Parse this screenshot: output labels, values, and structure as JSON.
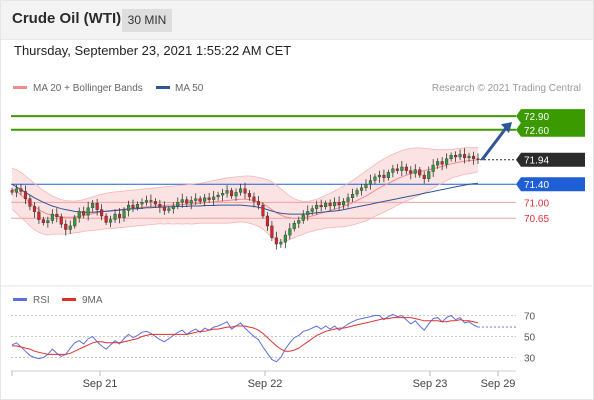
{
  "header": {
    "instrument": "Crude Oil (WTI)",
    "timeframe": "30 MIN"
  },
  "datetime": "Thursday, September 23, 2021 1:55:22 AM CET",
  "chart_data": [
    {
      "type": "candlestick",
      "legend": [
        {
          "name": "MA 20 + Bollinger Bands",
          "color": "#f08c8c"
        },
        {
          "name": "MA 50",
          "color": "#2f5597"
        }
      ],
      "copyright": "Research © 2021 Trading Central",
      "x_ticks": [
        "Sep 21",
        "Sep 22",
        "Sep 23",
        "Sep 29"
      ],
      "ylim": [
        69.2,
        73.3
      ],
      "levels": [
        {
          "value": 72.9,
          "label": "72.90",
          "color": "#3a9a00",
          "kind": "resistance"
        },
        {
          "value": 72.6,
          "label": "72.60",
          "color": "#3a9a00",
          "kind": "resistance"
        },
        {
          "value": 71.94,
          "label": "71.94",
          "color": "#2b2b2b",
          "kind": "last"
        },
        {
          "value": 71.4,
          "label": "71.40",
          "color": "#1f5fd6",
          "kind": "pivot"
        },
        {
          "value": 71.0,
          "label": "71.00",
          "color": "#e0303a",
          "kind": "support"
        },
        {
          "value": 70.65,
          "label": "70.65",
          "color": "#e0303a",
          "kind": "support"
        }
      ],
      "closes": [
        71.22,
        71.3,
        71.24,
        71.08,
        70.91,
        70.79,
        70.62,
        70.55,
        70.6,
        70.74,
        70.68,
        70.52,
        70.4,
        70.48,
        70.66,
        70.8,
        70.72,
        70.88,
        70.98,
        70.84,
        70.7,
        70.56,
        70.62,
        70.74,
        70.66,
        70.82,
        70.94,
        70.88,
        70.96,
        71.0,
        71.04,
        71.02,
        70.96,
        70.9,
        70.82,
        70.86,
        70.92,
        71.0,
        71.06,
        70.98,
        71.04,
        71.08,
        71.02,
        71.1,
        71.06,
        71.12,
        71.16,
        71.2,
        71.26,
        71.14,
        71.22,
        71.3,
        71.2,
        71.12,
        71.02,
        70.94,
        70.7,
        70.48,
        70.22,
        70.08,
        70.12,
        70.28,
        70.42,
        70.54,
        70.6,
        70.72,
        70.8,
        70.86,
        70.94,
        70.9,
        70.98,
        70.92,
        71.0,
        70.94,
        71.02,
        71.1,
        71.18,
        71.26,
        71.32,
        71.4,
        71.48,
        71.56,
        71.6,
        71.54,
        71.66,
        71.74,
        71.7,
        71.78,
        71.7,
        71.64,
        71.72,
        71.6,
        71.52,
        71.68,
        71.82,
        71.9,
        71.84,
        71.96,
        72.04,
        72.0,
        72.06,
        71.98,
        72.02,
        71.96,
        71.94
      ],
      "ma20": [
        71.3,
        71.24,
        71.16,
        71.08,
        70.99,
        70.91,
        70.84,
        70.78,
        70.74,
        70.72,
        70.7,
        70.68,
        70.67,
        70.67,
        70.68,
        70.69,
        70.71,
        70.73,
        70.75,
        70.77,
        70.79,
        70.81,
        70.82,
        70.83,
        70.84,
        70.85,
        70.86,
        70.87,
        70.88,
        70.89,
        70.9,
        70.91,
        70.92,
        70.93,
        70.93,
        70.94,
        70.94,
        70.95,
        70.95,
        70.96,
        70.96,
        70.97,
        70.98,
        70.99,
        71.0,
        71.01,
        71.02,
        71.03,
        71.04,
        71.05,
        71.06,
        71.07,
        71.07,
        71.06,
        71.04,
        71.01,
        70.97,
        70.91,
        70.84,
        70.77,
        70.72,
        70.68,
        70.66,
        70.65,
        70.65,
        70.66,
        70.68,
        70.7,
        70.73,
        70.76,
        70.79,
        70.82,
        70.85,
        70.88,
        70.91,
        70.95,
        70.99,
        71.04,
        71.09,
        71.14,
        71.2,
        71.26,
        71.32,
        71.37,
        71.42,
        71.47,
        71.52,
        71.56,
        71.6,
        71.63,
        71.66,
        71.68,
        71.7,
        71.72,
        71.74,
        71.77,
        71.79,
        71.82,
        71.85,
        71.87,
        71.89,
        71.91,
        71.92,
        71.93,
        71.94
      ],
      "bb_upper": [
        71.75,
        71.72,
        71.66,
        71.58,
        71.5,
        71.42,
        71.34,
        71.26,
        71.2,
        71.14,
        71.1,
        71.06,
        71.04,
        71.03,
        71.03,
        71.04,
        71.06,
        71.09,
        71.12,
        71.15,
        71.18,
        71.2,
        71.22,
        71.23,
        71.24,
        71.25,
        71.26,
        71.27,
        71.28,
        71.29,
        71.3,
        71.31,
        71.32,
        71.33,
        71.34,
        71.35,
        71.36,
        71.37,
        71.38,
        71.39,
        71.4,
        71.41,
        71.42,
        71.44,
        71.46,
        71.48,
        71.5,
        71.52,
        71.54,
        71.55,
        71.56,
        71.57,
        71.58,
        71.58,
        71.57,
        71.55,
        71.53,
        71.5,
        71.45,
        71.38,
        71.3,
        71.22,
        71.14,
        71.08,
        71.04,
        71.02,
        71.02,
        71.04,
        71.07,
        71.11,
        71.15,
        71.2,
        71.25,
        71.3,
        71.36,
        71.42,
        71.48,
        71.55,
        71.62,
        71.69,
        71.76,
        71.83,
        71.9,
        71.96,
        72.01,
        72.06,
        72.1,
        72.14,
        72.17,
        72.19,
        72.2,
        72.2,
        72.19,
        72.18,
        72.17,
        72.16,
        72.16,
        72.16,
        72.17,
        72.18,
        72.19,
        72.2,
        72.21,
        72.21,
        72.21
      ],
      "bb_lower": [
        70.85,
        70.76,
        70.66,
        70.58,
        70.48,
        70.4,
        70.34,
        70.3,
        70.28,
        70.3,
        70.3,
        70.3,
        70.3,
        70.31,
        70.33,
        70.34,
        70.36,
        70.37,
        70.38,
        70.39,
        70.4,
        70.42,
        70.42,
        70.43,
        70.44,
        70.45,
        70.46,
        70.47,
        70.48,
        70.49,
        70.5,
        70.51,
        70.52,
        70.53,
        70.52,
        70.53,
        70.52,
        70.53,
        70.52,
        70.53,
        70.52,
        70.53,
        70.54,
        70.54,
        70.54,
        70.54,
        70.54,
        70.54,
        70.54,
        70.55,
        70.56,
        70.57,
        70.56,
        70.54,
        70.51,
        70.47,
        70.41,
        70.32,
        70.23,
        70.16,
        70.14,
        70.14,
        70.18,
        70.22,
        70.26,
        70.3,
        70.34,
        70.36,
        70.39,
        70.41,
        70.43,
        70.44,
        70.45,
        70.46,
        70.46,
        70.48,
        70.5,
        70.53,
        70.56,
        70.59,
        70.64,
        70.69,
        70.74,
        70.78,
        70.83,
        70.88,
        70.94,
        70.98,
        71.03,
        71.07,
        71.12,
        71.16,
        71.21,
        71.26,
        71.31,
        71.38,
        71.42,
        71.48,
        71.53,
        71.56,
        71.59,
        71.62,
        71.63,
        71.65,
        71.67
      ],
      "ma50": [
        71.4,
        71.34,
        71.28,
        71.22,
        71.16,
        71.1,
        71.05,
        71.0,
        70.96,
        70.92,
        70.89,
        70.86,
        70.84,
        70.82,
        70.8,
        70.79,
        70.78,
        70.78,
        70.78,
        70.79,
        70.8,
        70.8,
        70.81,
        70.82,
        70.83,
        70.84,
        70.85,
        70.86,
        70.86,
        70.87,
        70.88,
        70.88,
        70.89,
        70.89,
        70.9,
        70.9,
        70.9,
        70.91,
        70.91,
        70.91,
        70.92,
        70.92,
        70.92,
        70.93,
        70.93,
        70.93,
        70.94,
        70.94,
        70.94,
        70.94,
        70.94,
        70.94,
        70.93,
        70.92,
        70.91,
        70.89,
        70.87,
        70.84,
        70.81,
        70.78,
        70.76,
        70.75,
        70.74,
        70.74,
        70.74,
        70.74,
        70.75,
        70.76,
        70.77,
        70.78,
        70.79,
        70.8,
        70.81,
        70.82,
        70.84,
        70.86,
        70.88,
        70.9,
        70.92,
        70.94,
        70.96,
        70.98,
        71.0,
        71.02,
        71.04,
        71.06,
        71.08,
        71.1,
        71.12,
        71.14,
        71.16,
        71.18,
        71.2,
        71.22,
        71.24,
        71.26,
        71.28,
        71.3,
        71.32,
        71.34,
        71.36,
        71.38,
        71.4,
        71.41,
        71.42
      ],
      "forecast": {
        "from": 71.94,
        "to": 72.9,
        "color": "#2f5597"
      }
    },
    {
      "type": "line",
      "legend": [
        {
          "name": "RSI",
          "color": "#5b6fe0"
        },
        {
          "name": "9MA",
          "color": "#e0302a"
        }
      ],
      "y_ticks": [
        70,
        50,
        30
      ],
      "ylim": [
        20,
        80
      ],
      "series": [
        {
          "name": "RSI",
          "color": "#5b6fe0",
          "values": [
            42,
            44,
            40,
            36,
            32,
            30,
            29,
            30,
            33,
            38,
            34,
            31,
            33,
            39,
            44,
            46,
            43,
            48,
            50,
            45,
            41,
            38,
            42,
            46,
            43,
            48,
            52,
            49,
            51,
            54,
            55,
            53,
            50,
            47,
            45,
            48,
            51,
            54,
            56,
            52,
            55,
            57,
            54,
            58,
            56,
            59,
            60,
            62,
            64,
            57,
            60,
            63,
            58,
            54,
            50,
            47,
            40,
            34,
            28,
            26,
            30,
            38,
            44,
            49,
            51,
            55,
            56,
            58,
            60,
            57,
            60,
            57,
            60,
            56,
            59,
            62,
            64,
            66,
            67,
            68,
            69,
            70,
            70,
            66,
            69,
            71,
            69,
            70,
            66,
            62,
            65,
            60,
            56,
            62,
            67,
            68,
            64,
            68,
            70,
            66,
            68,
            63,
            64,
            61,
            59
          ]
        },
        {
          "name": "9MA",
          "color": "#e0302a",
          "values": [
            41,
            41,
            40,
            39,
            38,
            36,
            35,
            34,
            33,
            33,
            33,
            33,
            33,
            34,
            36,
            38,
            40,
            42,
            44,
            45,
            45,
            44,
            44,
            44,
            44,
            45,
            46,
            47,
            48,
            50,
            51,
            52,
            52,
            52,
            52,
            52,
            52,
            52,
            52,
            52,
            53,
            54,
            55,
            55,
            56,
            57,
            57,
            58,
            59,
            59,
            60,
            60,
            60,
            59,
            58,
            56,
            53,
            49,
            45,
            41,
            38,
            36,
            36,
            37,
            39,
            42,
            45,
            48,
            51,
            53,
            55,
            56,
            57,
            58,
            58,
            59,
            60,
            61,
            62,
            63,
            64,
            65,
            66,
            67,
            67,
            68,
            68,
            68,
            68,
            68,
            67,
            66,
            65,
            65,
            65,
            65,
            64,
            64,
            65,
            65,
            66,
            65,
            65,
            64,
            63
          ]
        }
      ]
    }
  ]
}
